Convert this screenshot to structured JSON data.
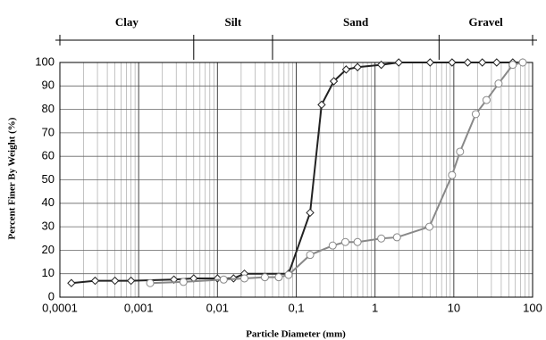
{
  "chart_data": {
    "type": "line",
    "zones": [
      {
        "label": "Clay"
      },
      {
        "label": "Silt"
      },
      {
        "label": "Sand"
      },
      {
        "label": "Gravel"
      }
    ],
    "zone_boundaries": [
      0.005,
      0.05,
      6.5
    ],
    "x_label": "Particle Diameter (mm)",
    "y_label": "Percent Finer By Weight (%)",
    "log_x": true,
    "grid": true,
    "xlim": [
      0.0001,
      100
    ],
    "ylim": [
      0,
      100
    ],
    "xticks": [
      {
        "value": 0.0001,
        "label": "0,0001"
      },
      {
        "value": 0.001,
        "label": "0,001"
      },
      {
        "value": 0.01,
        "label": "0,01"
      },
      {
        "value": 0.1,
        "label": "0,1"
      },
      1,
      10,
      100
    ],
    "yticks": [
      0,
      10,
      20,
      30,
      40,
      50,
      60,
      70,
      80,
      90,
      100
    ],
    "series": [
      {
        "color": "#222222",
        "marker": "diamond",
        "x": [
          0.00014,
          0.00028,
          0.0005,
          0.0008,
          0.0028,
          0.005,
          0.01,
          0.016,
          0.022,
          0.08,
          0.15,
          0.21,
          0.3,
          0.43,
          0.6,
          1.2,
          2,
          5,
          9.5,
          15,
          23,
          35,
          56,
          75
        ],
        "values": [
          6,
          7,
          7,
          7,
          7.5,
          8,
          8,
          8,
          10,
          10,
          36,
          82,
          92,
          97,
          98,
          99,
          100,
          100,
          100,
          100,
          100,
          100,
          100,
          100
        ]
      },
      {
        "color": "#888888",
        "marker": "circle",
        "x": [
          0.0014,
          0.0037,
          0.012,
          0.022,
          0.04,
          0.06,
          0.08,
          0.15,
          0.29,
          0.42,
          0.6,
          1.2,
          1.9,
          4.9,
          9.5,
          12,
          19,
          26,
          37,
          56,
          75
        ],
        "values": [
          6,
          6.5,
          7.5,
          8,
          8.5,
          8.5,
          9.5,
          18,
          22,
          23.5,
          23.5,
          25,
          25.5,
          30,
          52,
          62,
          78,
          84,
          91,
          99,
          100
        ]
      }
    ]
  }
}
